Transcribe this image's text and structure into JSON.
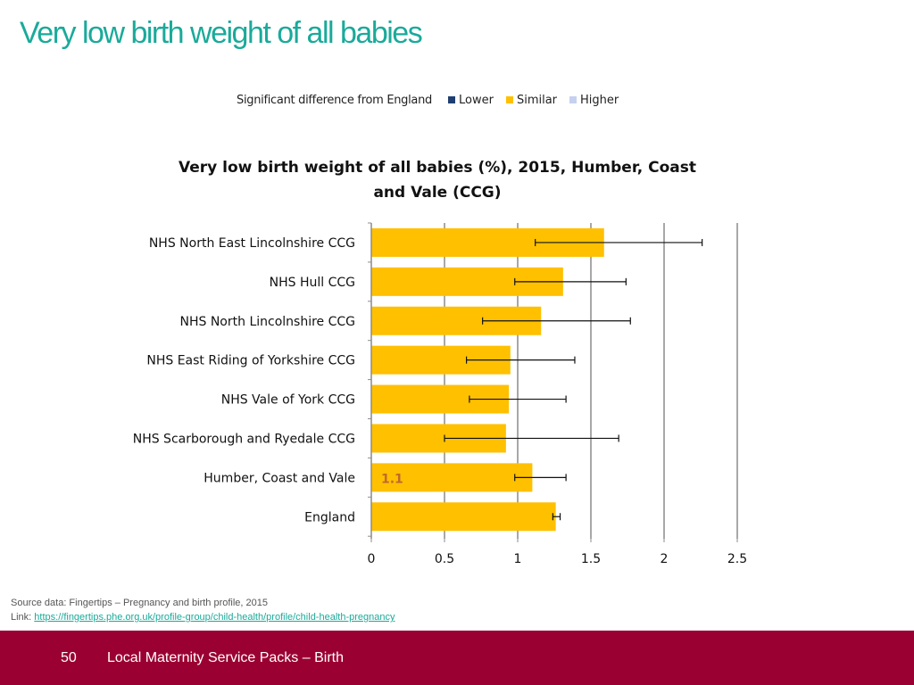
{
  "slide": {
    "title": "Very low birth weight of all babies"
  },
  "legend": {
    "caption": "Significant difference from England",
    "items": [
      {
        "label": "Lower",
        "color": "#1f3e72"
      },
      {
        "label": "Similar",
        "color": "#ffc000"
      },
      {
        "label": "Higher",
        "color": "#c6d1ef"
      }
    ]
  },
  "chart_data": {
    "type": "bar",
    "orientation": "horizontal",
    "title": "Very low birth weight of all babies (%), 2015, Humber, Coast and Vale (CCG)",
    "xlabel": "",
    "ylabel": "",
    "xlim": [
      0,
      2.5
    ],
    "x_ticks": [
      0,
      0.5,
      1,
      1.5,
      2,
      2.5
    ],
    "x_tick_labels": [
      "0",
      "0.5",
      "1",
      "1.5",
      "2",
      "2.5"
    ],
    "grid": true,
    "bar_color": "#ffc000",
    "categories": [
      "NHS North East Lincolnshire CCG",
      "NHS Hull CCG",
      "NHS North Lincolnshire CCG",
      "NHS East Riding of Yorkshire CCG",
      "NHS Vale of York CCG",
      "NHS Scarborough and Ryedale CCG",
      "Humber, Coast and Vale",
      "England"
    ],
    "values": [
      1.59,
      1.31,
      1.16,
      0.95,
      0.94,
      0.92,
      1.1,
      1.26
    ],
    "lower_ci": [
      1.12,
      0.98,
      0.76,
      0.65,
      0.67,
      0.5,
      0.98,
      1.24
    ],
    "upper_ci": [
      2.26,
      1.74,
      1.77,
      1.39,
      1.33,
      1.69,
      1.33,
      1.29
    ],
    "data_labels": [
      "",
      "",
      "",
      "",
      "",
      "",
      "1.1",
      ""
    ]
  },
  "source": {
    "line1": "Source data: Fingertips – Pregnancy and birth profile, 2015",
    "link_prefix": "Link: ",
    "link_text": "https://fingertips.phe.org.uk/profile-group/child-health/profile/child-health-pregnancy"
  },
  "footer": {
    "page_number": "50",
    "text": "Local Maternity Service Packs – Birth"
  }
}
